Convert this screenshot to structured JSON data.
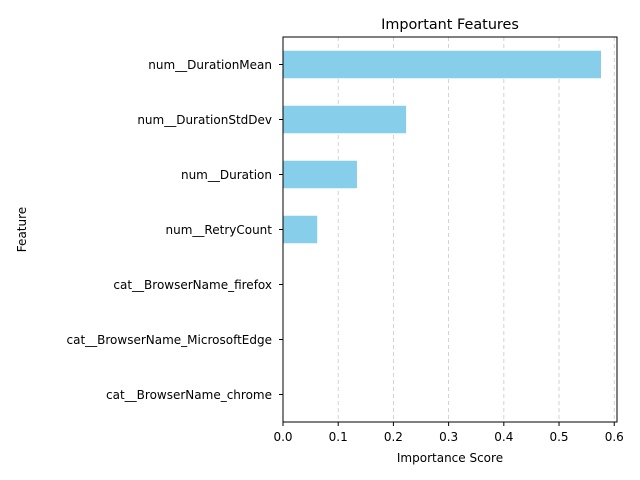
{
  "chart_data": {
    "type": "bar",
    "orientation": "horizontal",
    "title": "Important Features",
    "xlabel": "Importance Score",
    "ylabel": "Feature",
    "categories": [
      "num__DurationMean",
      "num__DurationStdDev",
      "num__Duration",
      "num__RetryCount",
      "cat__BrowserName_firefox",
      "cat__BrowserName_MicrosoftEdge",
      "cat__BrowserName_chrome"
    ],
    "values": [
      0.576,
      0.223,
      0.134,
      0.062,
      0.0,
      0.0,
      0.0
    ],
    "xlim": [
      0,
      0.605
    ],
    "xticks": [
      "0.0",
      "0.1",
      "0.2",
      "0.3",
      "0.4",
      "0.5",
      "0.6"
    ],
    "xtick_values": [
      0,
      0.1,
      0.2,
      0.3,
      0.4,
      0.5,
      0.6
    ],
    "bar_color": "#87ceeb",
    "grid": "x, dashed, light gray",
    "legend": "none"
  }
}
